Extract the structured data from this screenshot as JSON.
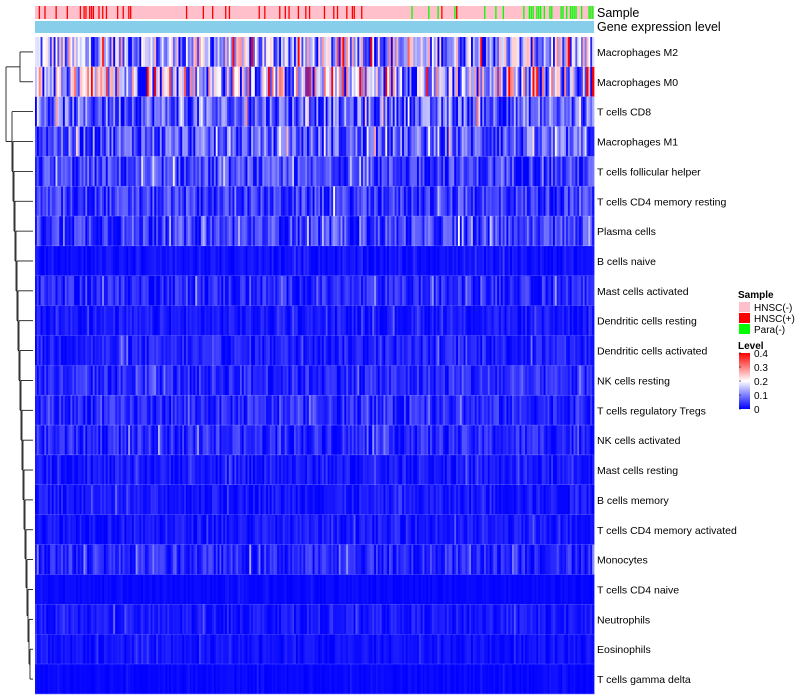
{
  "chart_data": {
    "type": "heatmap",
    "title": "",
    "annotation_tracks": [
      "Sample",
      "Gene expression level"
    ],
    "rows": [
      "Macrophages M2",
      "Macrophages M0",
      "T cells CD8",
      "Macrophages M1",
      "T cells follicular helper",
      "T cells CD4 memory resting",
      "Plasma cells",
      "B cells naive",
      "Mast cells activated",
      "Dendritic cells resting",
      "Dendritic cells activated",
      "NK cells resting",
      "T cells regulatory  Tregs",
      "NK cells activated",
      "Mast cells resting",
      "B cells memory",
      "T cells CD4 memory activated",
      "Monocytes",
      "T cells CD4 naive",
      "Neutrophils",
      "Eosinophils",
      "T cells gamma delta"
    ],
    "row_mean_levels": [
      0.22,
      0.25,
      0.12,
      0.11,
      0.08,
      0.07,
      0.08,
      0.02,
      0.05,
      0.03,
      0.04,
      0.05,
      0.05,
      0.05,
      0.03,
      0.03,
      0.03,
      0.05,
      0.01,
      0.03,
      0.02,
      0.01
    ],
    "sample_groups": [
      {
        "name": "HNSC(-)",
        "color": "#FFC0CB"
      },
      {
        "name": "HNSC(+)",
        "color": "#FF0000"
      },
      {
        "name": "Para(-)",
        "color": "#00FF00"
      }
    ],
    "legend": {
      "sample_title": "Sample",
      "level_title": "Level",
      "level_ticks": [
        "0.4",
        "0.3",
        "0.2",
        "0.1",
        "0"
      ],
      "range": [
        0,
        0.4
      ],
      "colors": {
        "low": "#0000FF",
        "mid": "#FFFFFF",
        "high": "#FF0000"
      },
      "placement": "right"
    }
  }
}
